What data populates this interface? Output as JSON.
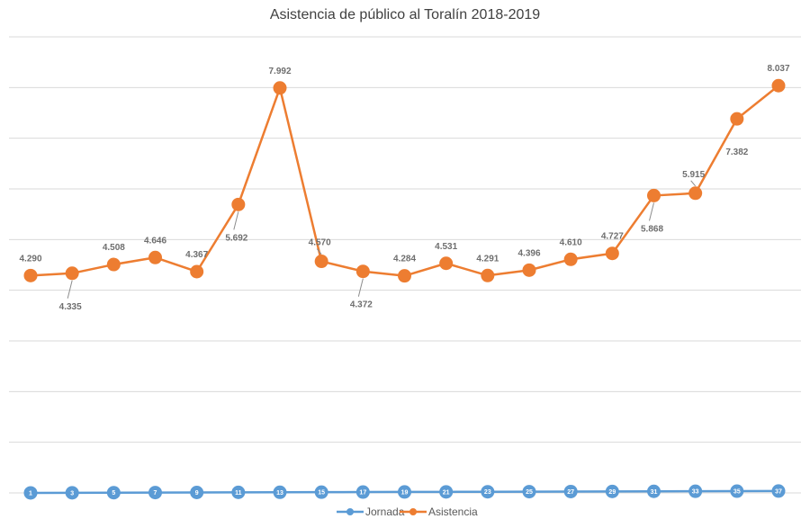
{
  "chart_data": {
    "type": "line",
    "title": "Asistencia de público al Toralín 2018-2019",
    "x": [
      "1",
      "3",
      "5",
      "7",
      "9",
      "11",
      "13",
      "15",
      "17",
      "19",
      "21",
      "23",
      "25",
      "27",
      "29",
      "31",
      "33",
      "35",
      "37"
    ],
    "series": [
      {
        "name": "Jornada",
        "values": [
          1,
          3,
          5,
          7,
          9,
          11,
          13,
          15,
          17,
          19,
          21,
          23,
          25,
          27,
          29,
          31,
          33,
          35,
          37
        ],
        "color": "#5b9bd5"
      },
      {
        "name": "Asistencia",
        "values": [
          4290,
          4335,
          4508,
          4646,
          4367,
          5692,
          7992,
          4570,
          4372,
          4284,
          4531,
          4291,
          4396,
          4610,
          4727,
          5868,
          5915,
          7382,
          8037
        ],
        "labels": [
          "4.290",
          "4.335",
          "4.508",
          "4.646",
          "4.367",
          "5.692",
          "7.992",
          "4.570",
          "4.372",
          "4.284",
          "4.531",
          "4.291",
          "4.396",
          "4.610",
          "4.727",
          "5.868",
          "5.915",
          "7.382",
          "8.037"
        ],
        "color": "#ed7d31"
      }
    ],
    "ylim": [
      0,
      9000
    ],
    "grid": true,
    "legend": "bottom",
    "data_labels": true
  }
}
